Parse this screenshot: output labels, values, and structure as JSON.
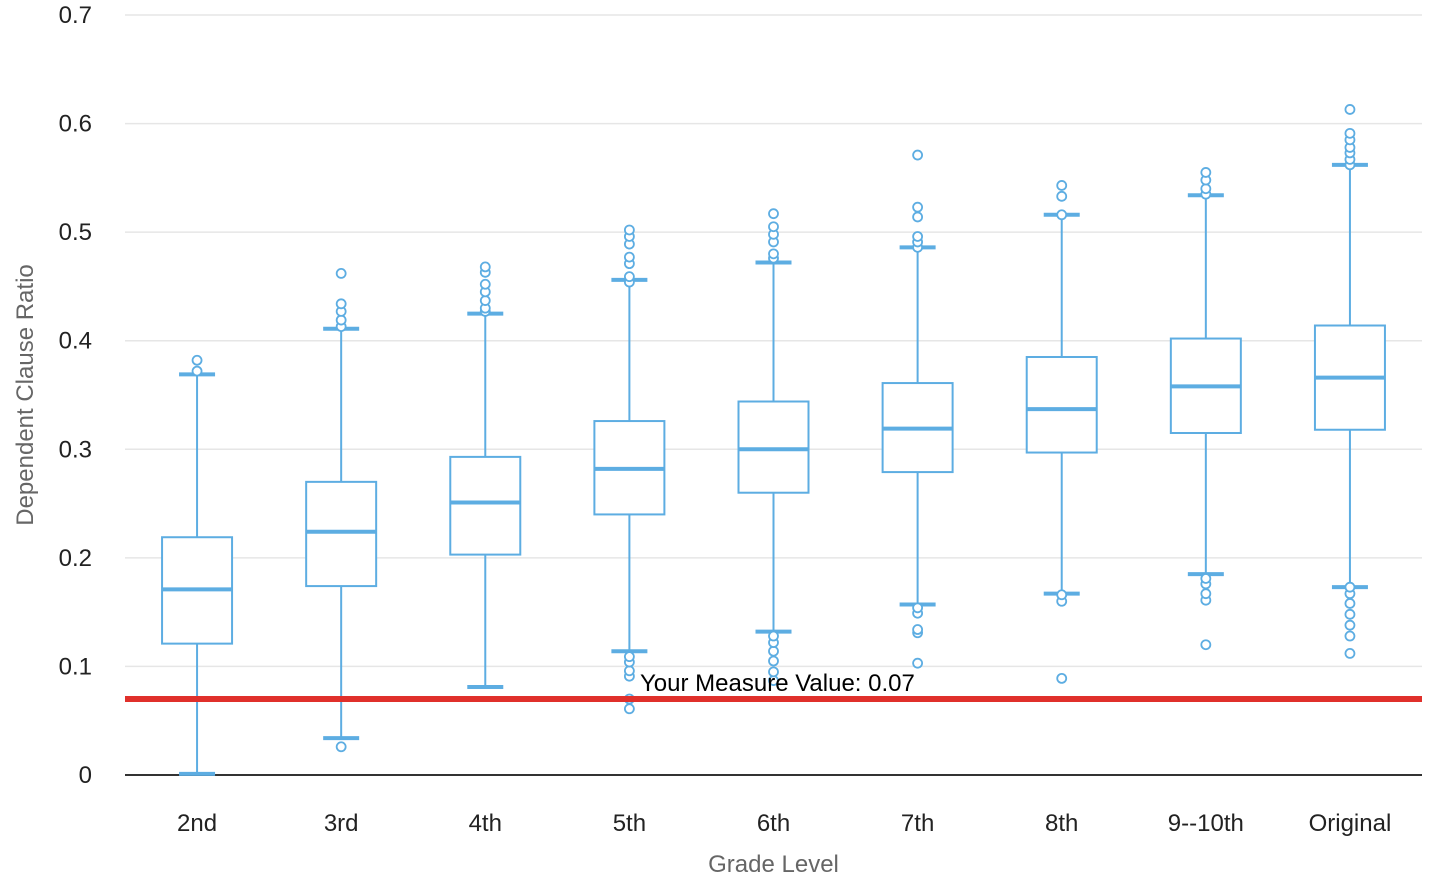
{
  "chart_data": {
    "type": "box",
    "title": "",
    "xlabel": "Grade Level",
    "ylabel": "Dependent Clause Ratio",
    "ylim": [
      0,
      0.7
    ],
    "yticks": [
      "0",
      "0.1",
      "0.2",
      "0.3",
      "0.4",
      "0.5",
      "0.6",
      "0.7"
    ],
    "grid": true,
    "legend": "none",
    "colors": {
      "box": "#5dade2",
      "reference": "#e0302b",
      "grid": "#e6e6e6",
      "axis": "#333333"
    },
    "categories": [
      "2nd",
      "3rd",
      "4th",
      "5th",
      "6th",
      "7th",
      "8th",
      "9--10th",
      "Original"
    ],
    "boxes": [
      {
        "whisker_low": 0.001,
        "q1": 0.121,
        "median": 0.171,
        "q3": 0.219,
        "whisker_high": 0.369,
        "outliers": [
          0.372,
          0.382
        ]
      },
      {
        "whisker_low": 0.034,
        "q1": 0.174,
        "median": 0.224,
        "q3": 0.27,
        "whisker_high": 0.411,
        "outliers": [
          0.026,
          0.413,
          0.419,
          0.427,
          0.434,
          0.462
        ]
      },
      {
        "whisker_low": 0.081,
        "q1": 0.203,
        "median": 0.251,
        "q3": 0.293,
        "whisker_high": 0.425,
        "outliers": [
          0.427,
          0.43,
          0.437,
          0.445,
          0.452,
          0.463,
          0.468
        ]
      },
      {
        "whisker_low": 0.114,
        "q1": 0.24,
        "median": 0.282,
        "q3": 0.326,
        "whisker_high": 0.456,
        "outliers": [
          0.061,
          0.07,
          0.091,
          0.096,
          0.104,
          0.109,
          0.454,
          0.459,
          0.471,
          0.477,
          0.489,
          0.496,
          0.502
        ]
      },
      {
        "whisker_low": 0.132,
        "q1": 0.26,
        "median": 0.3,
        "q3": 0.344,
        "whisker_high": 0.472,
        "outliers": [
          0.087,
          0.095,
          0.105,
          0.114,
          0.122,
          0.128,
          0.476,
          0.48,
          0.491,
          0.498,
          0.505,
          0.517
        ]
      },
      {
        "whisker_low": 0.157,
        "q1": 0.279,
        "median": 0.319,
        "q3": 0.361,
        "whisker_high": 0.486,
        "outliers": [
          0.103,
          0.131,
          0.134,
          0.149,
          0.154,
          0.486,
          0.491,
          0.496,
          0.514,
          0.523,
          0.571
        ]
      },
      {
        "whisker_low": 0.167,
        "q1": 0.297,
        "median": 0.337,
        "q3": 0.385,
        "whisker_high": 0.516,
        "outliers": [
          0.089,
          0.16,
          0.166,
          0.516,
          0.533,
          0.543
        ]
      },
      {
        "whisker_low": 0.185,
        "q1": 0.315,
        "median": 0.358,
        "q3": 0.402,
        "whisker_high": 0.534,
        "outliers": [
          0.12,
          0.161,
          0.167,
          0.176,
          0.181,
          0.535,
          0.54,
          0.548,
          0.555
        ]
      },
      {
        "whisker_low": 0.173,
        "q1": 0.318,
        "median": 0.366,
        "q3": 0.414,
        "whisker_high": 0.562,
        "outliers": [
          0.112,
          0.128,
          0.138,
          0.148,
          0.158,
          0.167,
          0.173,
          0.562,
          0.567,
          0.573,
          0.578,
          0.585,
          0.591,
          0.613
        ]
      }
    ],
    "reference_line": {
      "value": 0.07,
      "label": "Your Measure Value: 0.07"
    }
  }
}
